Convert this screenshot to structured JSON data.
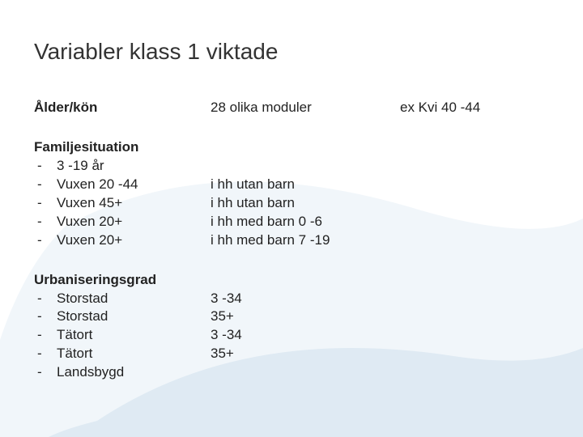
{
  "title_part1": "Variabler klass 1 ",
  "title_part2": "viktade",
  "title_color": "#333333",
  "title_accent_color": "#333333",
  "bg": {
    "swoosh_color": "#1165a6",
    "swoosh_opacity": 0.06
  },
  "section1": {
    "heading": "Ålder/kön",
    "col2": "28 olika moduler",
    "col3": "ex Kvi 40 -44"
  },
  "section2": {
    "heading": "Familjesituation",
    "items": [
      "3 -19 år",
      "Vuxen 20 -44",
      "Vuxen 45+",
      "Vuxen 20+",
      "Vuxen 20+"
    ],
    "col2": [
      "",
      "i hh utan barn",
      "i hh utan barn",
      "i hh med barn 0 -6",
      "i hh med barn 7 -19"
    ]
  },
  "section3": {
    "heading": "Urbaniseringsgrad",
    "items": [
      "Storstad",
      "Storstad",
      "Tätort",
      "Tätort",
      "Landsbygd"
    ],
    "col2": [
      "3 -34",
      "35+",
      "3 -34",
      "35+",
      ""
    ]
  }
}
